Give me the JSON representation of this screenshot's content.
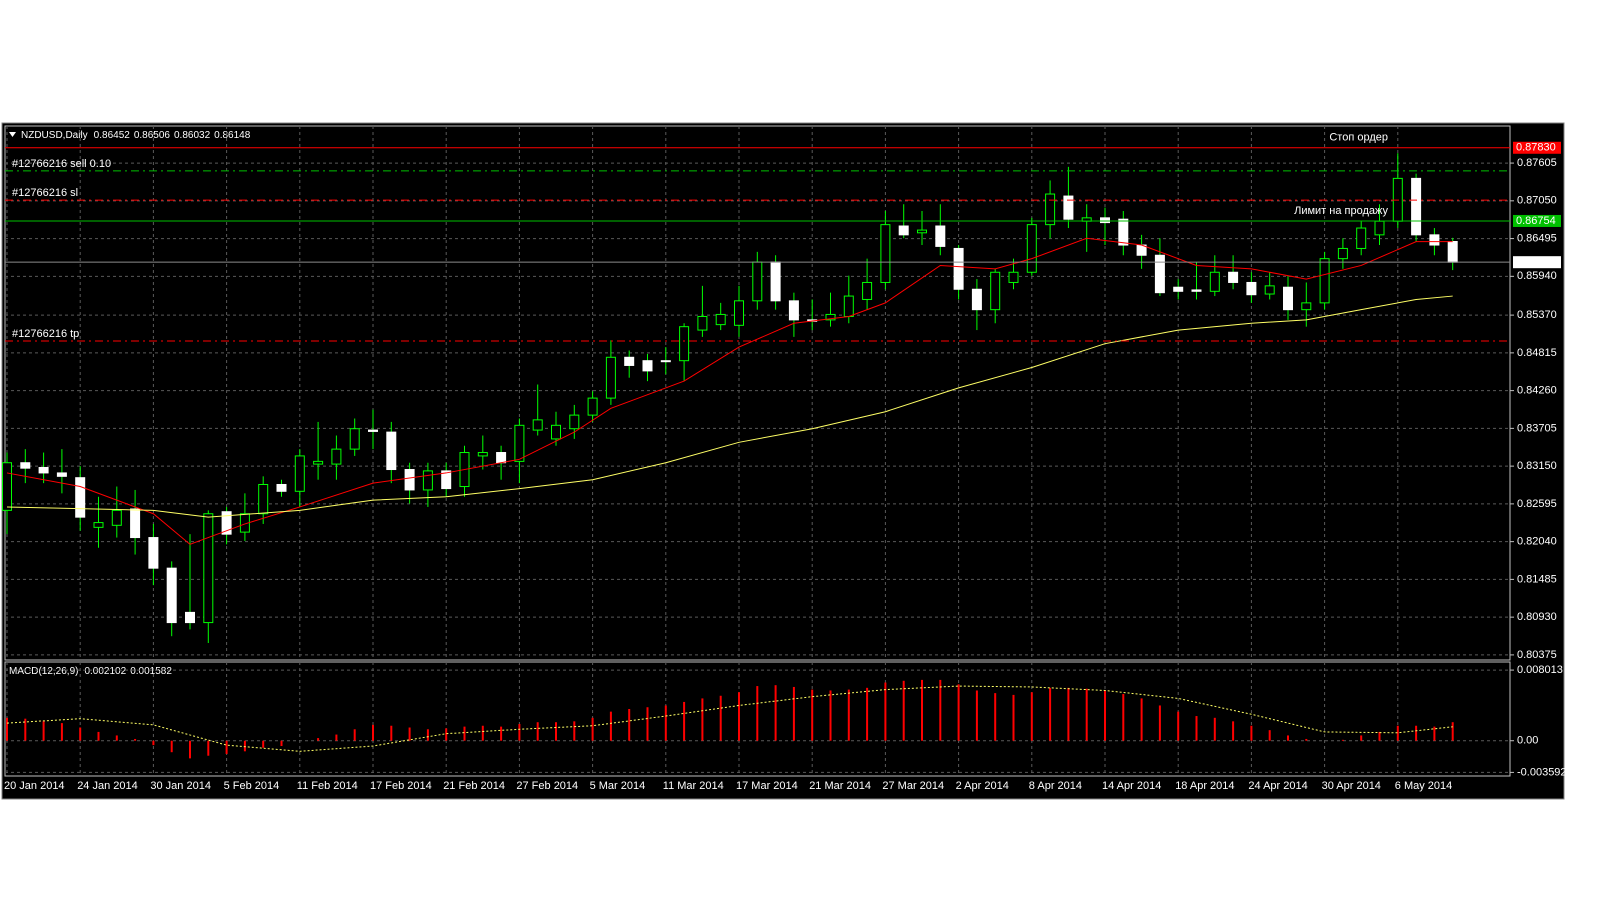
{
  "chart_data": [
    {
      "type": "candlestick",
      "title": "NZDUSD,Daily",
      "header_values": [
        0.86452,
        0.86506,
        0.86032,
        0.86148
      ],
      "categories": [
        "20 Jan 2014",
        null,
        null,
        null,
        "24 Jan 2014",
        null,
        null,
        null,
        "30 Jan 2014",
        null,
        null,
        null,
        "5 Feb 2014",
        null,
        null,
        null,
        "11 Feb 2014",
        null,
        null,
        null,
        "17 Feb 2014",
        null,
        null,
        null,
        "21 Feb 2014",
        null,
        null,
        null,
        "27 Feb 2014",
        null,
        null,
        null,
        "5 Mar 2014",
        null,
        null,
        null,
        "11 Mar 2014",
        null,
        null,
        null,
        "17 Mar 2014",
        null,
        null,
        null,
        "21 Mar 2014",
        null,
        null,
        null,
        "27 Mar 2014",
        null,
        null,
        null,
        "2 Apr 2014",
        null,
        null,
        null,
        "8 Apr 2014",
        null,
        null,
        null,
        "14 Apr 2014",
        null,
        null,
        null,
        "18 Apr 2014",
        null,
        null,
        null,
        "24 Apr 2014",
        null,
        null,
        null,
        "30 Apr 2014",
        null,
        null,
        null,
        "6 May 2014",
        null,
        null,
        null
      ],
      "open": [
        0.825,
        0.832,
        0.8313,
        0.8305,
        0.8298,
        0.8225,
        0.8228,
        0.8252,
        0.821,
        0.8165,
        0.81,
        0.8085,
        0.8248,
        0.8218,
        0.8245,
        0.8288,
        0.8278,
        0.8318,
        0.8318,
        0.834,
        0.8368,
        0.8365,
        0.831,
        0.828,
        0.8308,
        0.8285,
        0.833,
        0.8335,
        0.8322,
        0.8368,
        0.8355,
        0.837,
        0.839,
        0.8415,
        0.8475,
        0.847,
        0.847,
        0.847,
        0.8515,
        0.8523,
        0.8522,
        0.8558,
        0.8615,
        0.8558,
        0.853,
        0.853,
        0.8535,
        0.856,
        0.8585,
        0.8668,
        0.8658,
        0.8668,
        0.8635,
        0.8575,
        0.8545,
        0.8585,
        0.86,
        0.867,
        0.8712,
        0.8675,
        0.868,
        0.8678,
        0.864,
        0.8625,
        0.8578,
        0.8574,
        0.8572,
        0.86,
        0.8585,
        0.8568,
        0.8578,
        0.8545,
        0.8555,
        0.862,
        0.8635,
        0.8655,
        0.8675,
        0.8738,
        0.8655,
        0.86452
      ],
      "high": [
        0.8335,
        0.834,
        0.8335,
        0.834,
        0.8315,
        0.827,
        0.8285,
        0.828,
        0.823,
        0.8175,
        0.8215,
        0.825,
        0.8255,
        0.8275,
        0.83,
        0.8295,
        0.834,
        0.838,
        0.836,
        0.8385,
        0.8398,
        0.838,
        0.832,
        0.832,
        0.832,
        0.8345,
        0.836,
        0.8345,
        0.8385,
        0.8435,
        0.8395,
        0.8405,
        0.8425,
        0.85,
        0.8485,
        0.848,
        0.849,
        0.8525,
        0.858,
        0.8555,
        0.858,
        0.863,
        0.8625,
        0.857,
        0.856,
        0.857,
        0.8595,
        0.862,
        0.869,
        0.87,
        0.869,
        0.87,
        0.864,
        0.859,
        0.8605,
        0.862,
        0.868,
        0.8735,
        0.8755,
        0.87,
        0.8695,
        0.869,
        0.8655,
        0.865,
        0.859,
        0.8615,
        0.8625,
        0.8625,
        0.86,
        0.86,
        0.8595,
        0.8585,
        0.863,
        0.865,
        0.8675,
        0.87,
        0.8775,
        0.8745,
        0.8665,
        0.86506
      ],
      "low": [
        0.8215,
        0.829,
        0.829,
        0.8275,
        0.822,
        0.8195,
        0.821,
        0.8185,
        0.814,
        0.8065,
        0.8075,
        0.8055,
        0.82,
        0.8205,
        0.823,
        0.827,
        0.8255,
        0.8295,
        0.8295,
        0.833,
        0.834,
        0.829,
        0.826,
        0.8255,
        0.827,
        0.827,
        0.831,
        0.8295,
        0.829,
        0.836,
        0.8345,
        0.8355,
        0.838,
        0.8405,
        0.8445,
        0.844,
        0.845,
        0.844,
        0.8505,
        0.8515,
        0.8505,
        0.8545,
        0.8545,
        0.8505,
        0.8515,
        0.852,
        0.8525,
        0.8545,
        0.8575,
        0.865,
        0.864,
        0.8625,
        0.856,
        0.8515,
        0.8525,
        0.8575,
        0.8595,
        0.865,
        0.8665,
        0.863,
        0.864,
        0.8625,
        0.8605,
        0.8565,
        0.856,
        0.856,
        0.8565,
        0.8575,
        0.8555,
        0.856,
        0.853,
        0.852,
        0.8545,
        0.8605,
        0.8625,
        0.864,
        0.8665,
        0.8645,
        0.8625,
        0.86032
      ],
      "close": [
        0.832,
        0.8312,
        0.8305,
        0.83,
        0.824,
        0.8232,
        0.825,
        0.821,
        0.8165,
        0.8085,
        0.8085,
        0.8245,
        0.8215,
        0.8245,
        0.8288,
        0.8278,
        0.833,
        0.8322,
        0.834,
        0.837,
        0.8366,
        0.831,
        0.828,
        0.8308,
        0.8282,
        0.8335,
        0.8335,
        0.832,
        0.8375,
        0.8383,
        0.8375,
        0.839,
        0.8415,
        0.8475,
        0.8463,
        0.8455,
        0.8469,
        0.852,
        0.8535,
        0.8538,
        0.8558,
        0.8615,
        0.8558,
        0.853,
        0.8528,
        0.8538,
        0.8565,
        0.8585,
        0.867,
        0.8655,
        0.8662,
        0.8638,
        0.8575,
        0.8545,
        0.86,
        0.86,
        0.867,
        0.8715,
        0.8678,
        0.868,
        0.8673,
        0.864,
        0.8625,
        0.857,
        0.8572,
        0.8572,
        0.86,
        0.8585,
        0.8567,
        0.858,
        0.8545,
        0.8555,
        0.862,
        0.8635,
        0.8665,
        0.8675,
        0.8738,
        0.8655,
        0.864,
        0.86148
      ],
      "bull_color": "#00ff00",
      "bear_color": "#ffffff",
      "wick_color": "#00ff00",
      "lines": [
        {
          "color": "#ff0000",
          "x": [
            0,
            4,
            8,
            10,
            13,
            16,
            20,
            24,
            28,
            31,
            33,
            37,
            40,
            43,
            46,
            48,
            51,
            54,
            56,
            59,
            62,
            65,
            68,
            71,
            74,
            77,
            79
          ],
          "values": [
            0.8305,
            0.8285,
            0.8245,
            0.82,
            0.823,
            0.8255,
            0.829,
            0.8305,
            0.8325,
            0.8365,
            0.84,
            0.844,
            0.849,
            0.8525,
            0.8535,
            0.8555,
            0.861,
            0.8605,
            0.862,
            0.865,
            0.864,
            0.861,
            0.8605,
            0.859,
            0.861,
            0.8645,
            0.8645
          ]
        },
        {
          "color": "#ffff66",
          "x": [
            0,
            8,
            11,
            16,
            20,
            24,
            28,
            32,
            36,
            40,
            44,
            48,
            52,
            56,
            60,
            64,
            68,
            71,
            74,
            77,
            79
          ],
          "values": [
            0.8255,
            0.825,
            0.824,
            0.825,
            0.8265,
            0.827,
            0.8282,
            0.8295,
            0.832,
            0.835,
            0.837,
            0.8395,
            0.843,
            0.846,
            0.8495,
            0.8515,
            0.8525,
            0.853,
            0.8545,
            0.856,
            0.8565
          ]
        }
      ],
      "levels": [
        {
          "name": "Стоп ордер",
          "name_side": "right",
          "value": 0.8783,
          "value_label": "0.87830",
          "color": "#ff0000",
          "style": "solid",
          "price_box": true
        },
        {
          "name": "#12766216 sell 0.10",
          "name_side": "left",
          "value": 0.8749,
          "color": "#00c000",
          "style": "dashed",
          "price_box": false
        },
        {
          "name": "#12766216 sl",
          "name_side": "left",
          "value": 0.8706,
          "color": "#ff0000",
          "style": "dashed",
          "price_box": false
        },
        {
          "name": "Лимит на продажу",
          "name_side": "right",
          "value": 0.86754,
          "color": "#00c000",
          "style": "solid",
          "price_box": true
        },
        {
          "value": 0.86148,
          "color": "#8c8c8c",
          "style": "solid",
          "price_box": true
        },
        {
          "name": "#12766216 tp",
          "name_side": "left",
          "value": 0.8499,
          "color": "#ff0000",
          "style": "dashed",
          "price_box": false
        }
      ],
      "ylim": [
        0.803,
        0.8815
      ],
      "yticks": [
        0.87605,
        {
          "value": 0.8705,
          "label": "0.87050"
        },
        0.86495,
        {
          "value": 0.8594,
          "label": "0.85940"
        },
        {
          "value": 0.8537,
          "label": "0.85370"
        },
        0.84815,
        {
          "value": 0.8426,
          "label": "0.84260"
        },
        0.83705,
        {
          "value": 0.8315,
          "label": "0.83150"
        },
        0.82595,
        {
          "value": 0.8204,
          "label": "0.82040"
        },
        0.81485,
        {
          "value": 0.8093,
          "label": "0.80930"
        },
        0.80375
      ],
      "grid": true
    },
    {
      "type": "bar",
      "title": "MACD(12,26,9)",
      "header_values": [
        0.002102,
        0.001582
      ],
      "color": "#ff0000",
      "values": [
        0.0026,
        0.0025,
        0.0022,
        0.002,
        0.0015,
        0.001,
        0.0006,
        0.0002,
        -0.0005,
        -0.0013,
        -0.002,
        -0.0017,
        -0.0015,
        -0.0012,
        -0.0008,
        -0.0006,
        0.0,
        0.0003,
        0.0007,
        0.0013,
        0.0018,
        0.0017,
        0.0015,
        0.0013,
        0.0014,
        0.0016,
        0.0017,
        0.0016,
        0.0019,
        0.0021,
        0.0021,
        0.0022,
        0.0026,
        0.0033,
        0.0036,
        0.0038,
        0.004,
        0.0044,
        0.0048,
        0.0051,
        0.0055,
        0.0062,
        0.0063,
        0.0061,
        0.0058,
        0.0057,
        0.0058,
        0.006,
        0.0066,
        0.0068,
        0.0069,
        0.0069,
        0.0064,
        0.0057,
        0.0054,
        0.0052,
        0.0055,
        0.006,
        0.006,
        0.0059,
        0.0057,
        0.0053,
        0.0048,
        0.004,
        0.0033,
        0.0028,
        0.0026,
        0.0022,
        0.0017,
        0.0012,
        0.0006,
        0.0002,
        0.0,
        0.0001,
        0.0006,
        0.001,
        0.0017,
        0.0017,
        0.0016,
        0.002102
      ],
      "lines": [
        {
          "color": "#ffff66",
          "x": [
            0,
            4,
            8,
            12,
            16,
            20,
            24,
            28,
            32,
            36,
            40,
            44,
            48,
            52,
            56,
            60,
            64,
            68,
            72,
            76,
            79
          ],
          "values": [
            0.002,
            0.0025,
            0.0018,
            -0.0005,
            -0.0012,
            -0.0006,
            0.0008,
            0.0013,
            0.0017,
            0.0028,
            0.004,
            0.005,
            0.0058,
            0.0062,
            0.0061,
            0.0057,
            0.0048,
            0.003,
            0.001,
            0.0009,
            0.001582
          ]
        }
      ],
      "ylim": [
        -0.004,
        0.00893
      ],
      "yticks": [
        0.008013,
        {
          "value": 0,
          "label": "0.00"
        },
        -0.003592
      ],
      "grid": true
    }
  ]
}
